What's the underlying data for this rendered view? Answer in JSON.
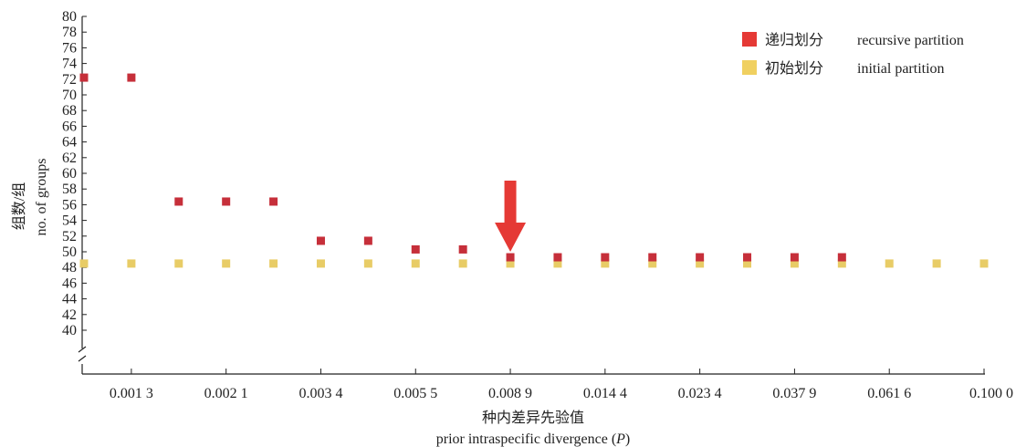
{
  "chart_data": {
    "type": "scatter",
    "xlabel_cn": "种内差异先验值",
    "xlabel_en": "prior intraspecific divergence (",
    "xlabel_en_var": "P",
    "xlabel_en_close": ")",
    "ylabel_cn": "组数/组",
    "ylabel_en": "no. of groups",
    "y_ticks": [
      "80",
      "78",
      "76",
      "74",
      "72",
      "70",
      "68",
      "66",
      "64",
      "62",
      "60",
      "58",
      "56",
      "54",
      "52",
      "50",
      "48",
      "46",
      "44",
      "42",
      "40"
    ],
    "ylim": [
      40,
      80
    ],
    "y_axis_break": true,
    "x_tick_labels": [
      "0.001 3",
      "0.002 1",
      "0.003 4",
      "0.005 5",
      "0.008 9",
      "0.014 4",
      "0.023 4",
      "0.037 9",
      "0.061 6",
      "0.100 0"
    ],
    "x_categories": 20,
    "series": [
      {
        "name_cn": "递归划分",
        "name_en": "recursive partition",
        "color": "#e53935",
        "marker_color": "#c62f3a",
        "values": [
          72.2,
          72.2,
          56.4,
          56.4,
          56.4,
          51.4,
          51.4,
          50.3,
          50.3,
          49.3,
          49.3,
          49.3,
          49.3,
          49.3,
          49.3,
          49.3,
          49.3,
          null,
          null,
          null
        ]
      },
      {
        "name_cn": "初始划分",
        "name_en": "initial partition",
        "color": "#f0d060",
        "marker_color": "#e8cc66",
        "values": [
          48.5,
          48.5,
          48.5,
          48.5,
          48.5,
          48.5,
          48.5,
          48.5,
          48.5,
          48.5,
          48.5,
          48.5,
          48.5,
          48.5,
          48.5,
          48.5,
          48.5,
          48.5,
          48.5,
          48.5
        ]
      }
    ],
    "highlight_arrow_category": 9,
    "arrow_color": "#e53935",
    "legend_position": "top-right",
    "grid": false
  }
}
